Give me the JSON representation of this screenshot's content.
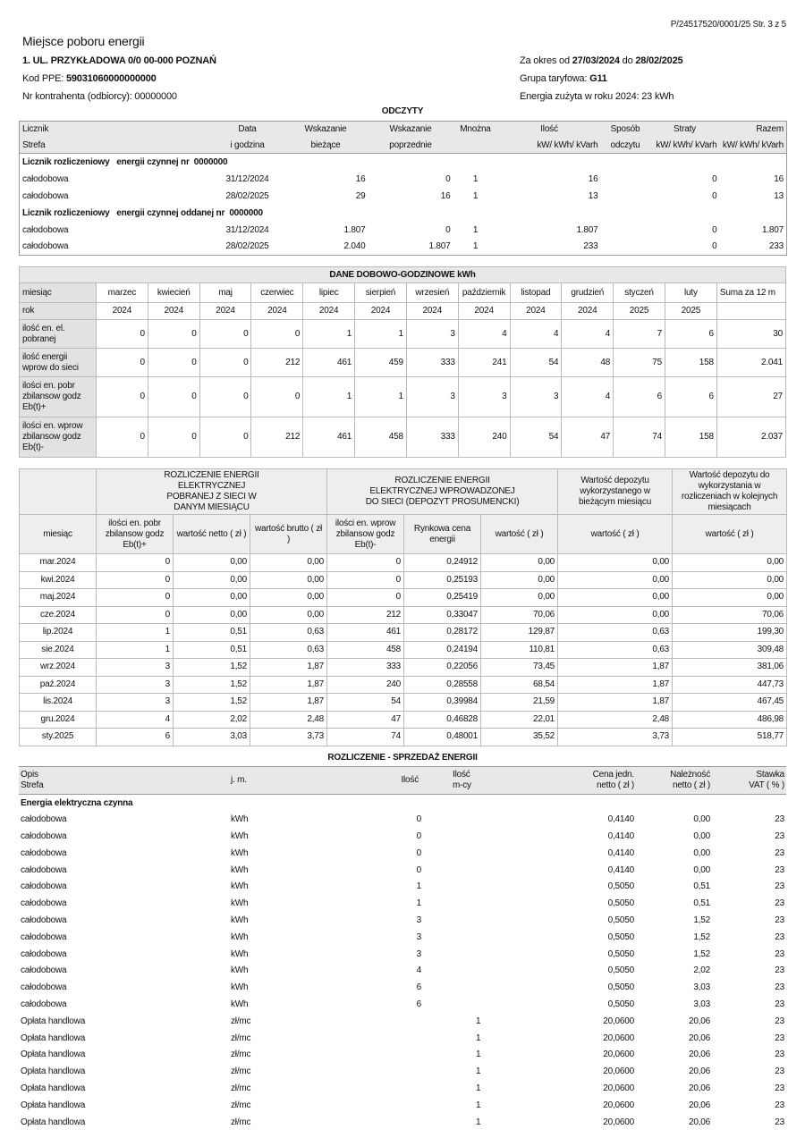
{
  "header": {
    "page_ref": "P/24517520/0001/25 Str. 3 z 5",
    "title": "Miejsce poboru energii",
    "address": "1. UL. PRZYKŁADOWA 0/0 00-000 POZNAŃ",
    "ppe_label": "Kod PPE: ",
    "ppe_value": "59031060000000000",
    "contractor": "Nr kontrahenta (odbiorcy): 00000000",
    "period_label": "Za okres od ",
    "period_from": "27/03/2024",
    "period_mid": " do ",
    "period_to": "28/02/2025",
    "tariff_label": "Grupa taryfowa: ",
    "tariff_value": "G11",
    "energy_year": "Energia zużyta w roku 2024: 23 kWh"
  },
  "odczyty": {
    "title": "ODCZYTY",
    "head1": [
      "Licznik",
      "Data",
      "Wskazanie",
      "Wskazanie",
      "Mnożna",
      "Ilość",
      "Sposób",
      "Straty",
      "Razem"
    ],
    "head2": [
      "Strefa",
      "i godzina",
      "bieżące",
      "poprzednie",
      "",
      "kW/ kWh/ kVarh",
      "odczytu",
      "kW/ kWh/ kVarh",
      "kW/ kWh/ kVarh"
    ],
    "sections": [
      {
        "label": "Licznik rozliczeniowy   energii czynnej nr  0000000",
        "rows": [
          [
            "całodobowa",
            "31/12/2024",
            "16",
            "0",
            "1",
            "16",
            "",
            "0",
            "16"
          ],
          [
            "całodobowa",
            "28/02/2025",
            "29",
            "16",
            "1",
            "13",
            "",
            "0",
            "13"
          ]
        ]
      },
      {
        "label": "Licznik rozliczeniowy   energii czynnej oddanej nr  0000000",
        "rows": [
          [
            "całodobowa",
            "31/12/2024",
            "1.807",
            "0",
            "1",
            "1.807",
            "",
            "0",
            "1.807"
          ],
          [
            "całodobowa",
            "28/02/2025",
            "2.040",
            "1.807",
            "1",
            "233",
            "",
            "0",
            "233"
          ]
        ]
      }
    ]
  },
  "dobowe": {
    "title": "DANE DOBOWO-GODZINOWE kWh",
    "rows": [
      [
        "miesiąc",
        "marzec",
        "kwiecień",
        "maj",
        "czerwiec",
        "lipiec",
        "sierpień",
        "wrzesień",
        "październik",
        "listopad",
        "grudzień",
        "styczeń",
        "luty",
        "Suma za 12 m"
      ],
      [
        "rok",
        "2024",
        "2024",
        "2024",
        "2024",
        "2024",
        "2024",
        "2024",
        "2024",
        "2024",
        "2024",
        "2025",
        "2025",
        ""
      ],
      [
        "ilość en. el. pobranej",
        "0",
        "0",
        "0",
        "0",
        "1",
        "1",
        "3",
        "4",
        "4",
        "4",
        "7",
        "6",
        "30"
      ],
      [
        "ilość energii wprow do sieci",
        "0",
        "0",
        "0",
        "212",
        "461",
        "459",
        "333",
        "241",
        "54",
        "48",
        "75",
        "158",
        "2.041"
      ],
      [
        "ilości en. pobr zbilansow godz Eb(t)+",
        "0",
        "0",
        "0",
        "0",
        "1",
        "1",
        "3",
        "3",
        "3",
        "4",
        "6",
        "6",
        "27"
      ],
      [
        "ilości en. wprow zbilansow godz Eb(t)-",
        "0",
        "0",
        "0",
        "212",
        "461",
        "458",
        "333",
        "240",
        "54",
        "47",
        "74",
        "158",
        "2.037"
      ]
    ]
  },
  "rozliczenie": {
    "group_heads": [
      "ROZLICZENIE ENERGII ELEKTRYCZNEJ POBRANEJ Z SIECI W DANYM MIESIĄCU",
      "ROZLICZENIE ENERGII ELEKTRYCZNEJ WPROWADZONEJ DO SIECI (DEPOZYT PROSUMENCKI)",
      "Wartość depozytu wykorzystanego w bieżącym miesiącu",
      "Wartość depozytu do wykorzystania w rozliczeniach w kolejnych miesiącach"
    ],
    "col_heads": [
      "miesiąc",
      "ilości en. pobr zbilansow godz Eb(t)+",
      "wartość netto ( zł )",
      "wartość brutto ( zł )",
      "ilości en. wprow zbilansow godz Eb(t)-",
      "Rynkowa cena energii",
      "wartość ( zł )",
      "wartość ( zł )",
      "wartość ( zł )"
    ],
    "rows": [
      [
        "mar.2024",
        "0",
        "0,00",
        "0,00",
        "0",
        "0,24912",
        "0,00",
        "0,00",
        "0,00"
      ],
      [
        "kwi.2024",
        "0",
        "0,00",
        "0,00",
        "0",
        "0,25193",
        "0,00",
        "0,00",
        "0,00"
      ],
      [
        "maj.2024",
        "0",
        "0,00",
        "0,00",
        "0",
        "0,25419",
        "0,00",
        "0,00",
        "0,00"
      ],
      [
        "cze.2024",
        "0",
        "0,00",
        "0,00",
        "212",
        "0,33047",
        "70,06",
        "0,00",
        "70,06"
      ],
      [
        "lip.2024",
        "1",
        "0,51",
        "0,63",
        "461",
        "0,28172",
        "129,87",
        "0,63",
        "199,30"
      ],
      [
        "sie.2024",
        "1",
        "0,51",
        "0,63",
        "458",
        "0,24194",
        "110,81",
        "0,63",
        "309,48"
      ],
      [
        "wrz.2024",
        "3",
        "1,52",
        "1,87",
        "333",
        "0,22056",
        "73,45",
        "1,87",
        "381,06"
      ],
      [
        "paź.2024",
        "3",
        "1,52",
        "1,87",
        "240",
        "0,28558",
        "68,54",
        "1,87",
        "447,73"
      ],
      [
        "lis.2024",
        "3",
        "1,52",
        "1,87",
        "54",
        "0,39984",
        "21,59",
        "1,87",
        "467,45"
      ],
      [
        "gru.2024",
        "4",
        "2,02",
        "2,48",
        "47",
        "0,46828",
        "22,01",
        "2,48",
        "486,98"
      ],
      [
        "sty.2025",
        "6",
        "3,03",
        "3,73",
        "74",
        "0,48001",
        "35,52",
        "3,73",
        "518,77"
      ]
    ]
  },
  "sprzedaz": {
    "title": "ROZLICZENIE - SPRZEDAŻ  ENERGII",
    "heads": [
      [
        "Opis",
        "Strefa"
      ],
      [
        "j. m.",
        ""
      ],
      [
        "Ilość",
        ""
      ],
      [
        "Ilość",
        "m-cy"
      ],
      [
        "Cena jedn.",
        "netto ( zł )"
      ],
      [
        "Należność",
        "netto ( zł )"
      ],
      [
        "Stawka",
        "VAT ( % )"
      ]
    ],
    "section": "Energia elektryczna czynna",
    "rows": [
      [
        "całodobowa",
        "kWh",
        "0",
        "",
        "0,4140",
        "0,00",
        "23"
      ],
      [
        "całodobowa",
        "kWh",
        "0",
        "",
        "0,4140",
        "0,00",
        "23"
      ],
      [
        "całodobowa",
        "kWh",
        "0",
        "",
        "0,4140",
        "0,00",
        "23"
      ],
      [
        "całodobowa",
        "kWh",
        "0",
        "",
        "0,4140",
        "0,00",
        "23"
      ],
      [
        "całodobowa",
        "kWh",
        "1",
        "",
        "0,5050",
        "0,51",
        "23"
      ],
      [
        "całodobowa",
        "kWh",
        "1",
        "",
        "0,5050",
        "0,51",
        "23"
      ],
      [
        "całodobowa",
        "kWh",
        "3",
        "",
        "0,5050",
        "1,52",
        "23"
      ],
      [
        "całodobowa",
        "kWh",
        "3",
        "",
        "0,5050",
        "1,52",
        "23"
      ],
      [
        "całodobowa",
        "kWh",
        "3",
        "",
        "0,5050",
        "1,52",
        "23"
      ],
      [
        "całodobowa",
        "kWh",
        "4",
        "",
        "0,5050",
        "2,02",
        "23"
      ],
      [
        "całodobowa",
        "kWh",
        "6",
        "",
        "0,5050",
        "3,03",
        "23"
      ],
      [
        "całodobowa",
        "kWh",
        "6",
        "",
        "0,5050",
        "3,03",
        "23"
      ],
      [
        "Opłata handlowa",
        "zł/mc",
        "",
        "1",
        "20,0600",
        "20,06",
        "23"
      ],
      [
        "Opłata handlowa",
        "zł/mc",
        "",
        "1",
        "20,0600",
        "20,06",
        "23"
      ],
      [
        "Opłata handlowa",
        "zł/mc",
        "",
        "1",
        "20,0600",
        "20,06",
        "23"
      ],
      [
        "Opłata handlowa",
        "zł/mc",
        "",
        "1",
        "20,0600",
        "20,06",
        "23"
      ],
      [
        "Opłata handlowa",
        "zł/mc",
        "",
        "1",
        "20,0600",
        "20,06",
        "23"
      ],
      [
        "Opłata handlowa",
        "zł/mc",
        "",
        "1",
        "20,0600",
        "20,06",
        "23"
      ],
      [
        "Opłata handlowa",
        "zł/mc",
        "",
        "1",
        "20,0600",
        "20,06",
        "23"
      ]
    ]
  }
}
